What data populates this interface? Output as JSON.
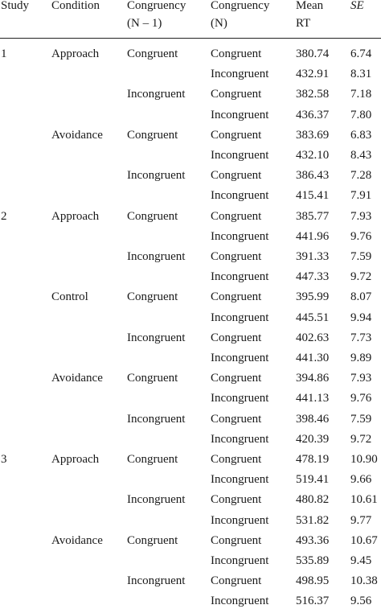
{
  "headers": {
    "study": "Study",
    "condition": "Condition",
    "prev_line1": "Congruency",
    "prev_line2": "(N – 1)",
    "cur_line1": "Congruency",
    "cur_line2": "(N)",
    "rt_line1": "Mean",
    "rt_line2": "RT",
    "se": "SE"
  },
  "rows": [
    {
      "study": "1",
      "condition": "Approach",
      "prev": "Congruent",
      "cur": "Congruent",
      "rt": "380.74",
      "se": "6.74"
    },
    {
      "study": "",
      "condition": "",
      "prev": "",
      "cur": "Incongruent",
      "rt": "432.91",
      "se": "8.31"
    },
    {
      "study": "",
      "condition": "",
      "prev": "Incongruent",
      "cur": "Congruent",
      "rt": "382.58",
      "se": "7.18"
    },
    {
      "study": "",
      "condition": "",
      "prev": "",
      "cur": "Incongruent",
      "rt": "436.37",
      "se": "7.80"
    },
    {
      "study": "",
      "condition": "Avoidance",
      "prev": "Congruent",
      "cur": "Congruent",
      "rt": "383.69",
      "se": "6.83"
    },
    {
      "study": "",
      "condition": "",
      "prev": "",
      "cur": "Incongruent",
      "rt": "432.10",
      "se": "8.43"
    },
    {
      "study": "",
      "condition": "",
      "prev": "Incongruent",
      "cur": "Congruent",
      "rt": "386.43",
      "se": "7.28"
    },
    {
      "study": "",
      "condition": "",
      "prev": "",
      "cur": "Incongruent",
      "rt": "415.41",
      "se": "7.91"
    },
    {
      "study": "2",
      "condition": "Approach",
      "prev": "Congruent",
      "cur": "Congruent",
      "rt": "385.77",
      "se": "7.93"
    },
    {
      "study": "",
      "condition": "",
      "prev": "",
      "cur": "Incongruent",
      "rt": "441.96",
      "se": "9.76"
    },
    {
      "study": "",
      "condition": "",
      "prev": "Incongruent",
      "cur": "Congruent",
      "rt": "391.33",
      "se": "7.59"
    },
    {
      "study": "",
      "condition": "",
      "prev": "",
      "cur": "Incongruent",
      "rt": "447.33",
      "se": "9.72"
    },
    {
      "study": "",
      "condition": "Control",
      "prev": "Congruent",
      "cur": "Congruent",
      "rt": "395.99",
      "se": "8.07"
    },
    {
      "study": "",
      "condition": "",
      "prev": "",
      "cur": "Incongruent",
      "rt": "445.51",
      "se": "9.94"
    },
    {
      "study": "",
      "condition": "",
      "prev": "Incongruent",
      "cur": "Congruent",
      "rt": "402.63",
      "se": "7.73"
    },
    {
      "study": "",
      "condition": "",
      "prev": "",
      "cur": "Incongruent",
      "rt": "441.30",
      "se": "9.89"
    },
    {
      "study": "",
      "condition": "Avoidance",
      "prev": "Congruent",
      "cur": "Congruent",
      "rt": "394.86",
      "se": "7.93"
    },
    {
      "study": "",
      "condition": "",
      "prev": "",
      "cur": "Incongruent",
      "rt": "441.13",
      "se": "9.76"
    },
    {
      "study": "",
      "condition": "",
      "prev": "Incongruent",
      "cur": "Congruent",
      "rt": "398.46",
      "se": "7.59"
    },
    {
      "study": "",
      "condition": "",
      "prev": "",
      "cur": "Incongruent",
      "rt": "420.39",
      "se": "9.72"
    },
    {
      "study": "3",
      "condition": "Approach",
      "prev": "Congruent",
      "cur": "Congruent",
      "rt": "478.19",
      "se": "10.90"
    },
    {
      "study": "",
      "condition": "",
      "prev": "",
      "cur": "Incongruent",
      "rt": "519.41",
      "se": "9.66"
    },
    {
      "study": "",
      "condition": "",
      "prev": "Incongruent",
      "cur": "Congruent",
      "rt": "480.82",
      "se": "10.61"
    },
    {
      "study": "",
      "condition": "",
      "prev": "",
      "cur": "Incongruent",
      "rt": "531.82",
      "se": "9.77"
    },
    {
      "study": "",
      "condition": "Avoidance",
      "prev": "Congruent",
      "cur": "Congruent",
      "rt": "493.36",
      "se": "10.67"
    },
    {
      "study": "",
      "condition": "",
      "prev": "",
      "cur": "Incongruent",
      "rt": "535.89",
      "se": "9.45"
    },
    {
      "study": "",
      "condition": "",
      "prev": "Incongruent",
      "cur": "Congruent",
      "rt": "498.95",
      "se": "10.38"
    },
    {
      "study": "",
      "condition": "",
      "prev": "",
      "cur": "Incongruent",
      "rt": "516.37",
      "se": "9.56"
    }
  ]
}
